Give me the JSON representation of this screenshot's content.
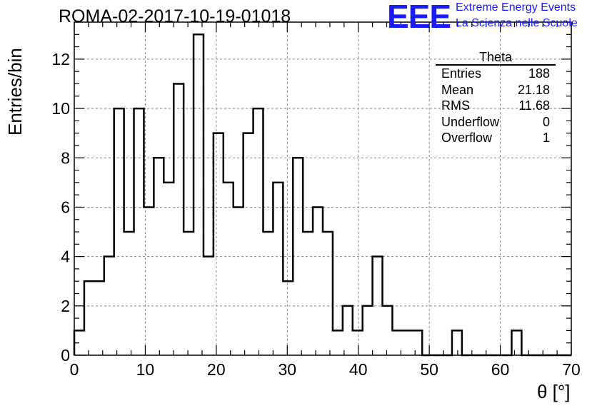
{
  "title": "ROMA-02-2017-10-19-01018",
  "branding": {
    "logo": "EEE",
    "line1": "Extreme Energy Events",
    "line2": "La Scienza nelle Scuole",
    "color": "#1a1aff"
  },
  "stats_box": {
    "title": "Theta",
    "rows": [
      {
        "label": "Entries",
        "value": "188"
      },
      {
        "label": "Mean",
        "value": "21.18"
      },
      {
        "label": "RMS",
        "value": "11.68"
      },
      {
        "label": "Underflow",
        "value": "0"
      },
      {
        "label": "Overflow",
        "value": "1"
      }
    ]
  },
  "chart_data": {
    "type": "bar",
    "style": "step-histogram",
    "title": "ROMA-02-2017-10-19-01018",
    "xlabel": "θ [°]",
    "ylabel": "Entries/bin",
    "xlim": [
      0,
      70
    ],
    "ylim": [
      0,
      13.5
    ],
    "bin_width": 1.4,
    "bin_start": 0,
    "values": [
      1,
      3,
      3,
      4,
      10,
      5,
      10,
      6,
      8,
      7,
      11,
      5,
      13,
      4,
      9,
      7,
      6,
      9,
      10,
      5,
      7,
      3,
      8,
      5,
      6,
      5,
      1,
      2,
      1,
      2,
      4,
      2,
      1,
      1,
      1,
      0,
      0,
      0,
      1,
      0,
      0,
      0,
      0,
      0,
      1,
      0,
      0,
      0,
      0,
      0
    ],
    "x_ticks": [
      "0",
      "10",
      "20",
      "30",
      "40",
      "50",
      "60",
      "70"
    ],
    "y_ticks": [
      "0",
      "2",
      "4",
      "6",
      "8",
      "10",
      "12"
    ],
    "grid": true,
    "line_color": "#000000"
  }
}
